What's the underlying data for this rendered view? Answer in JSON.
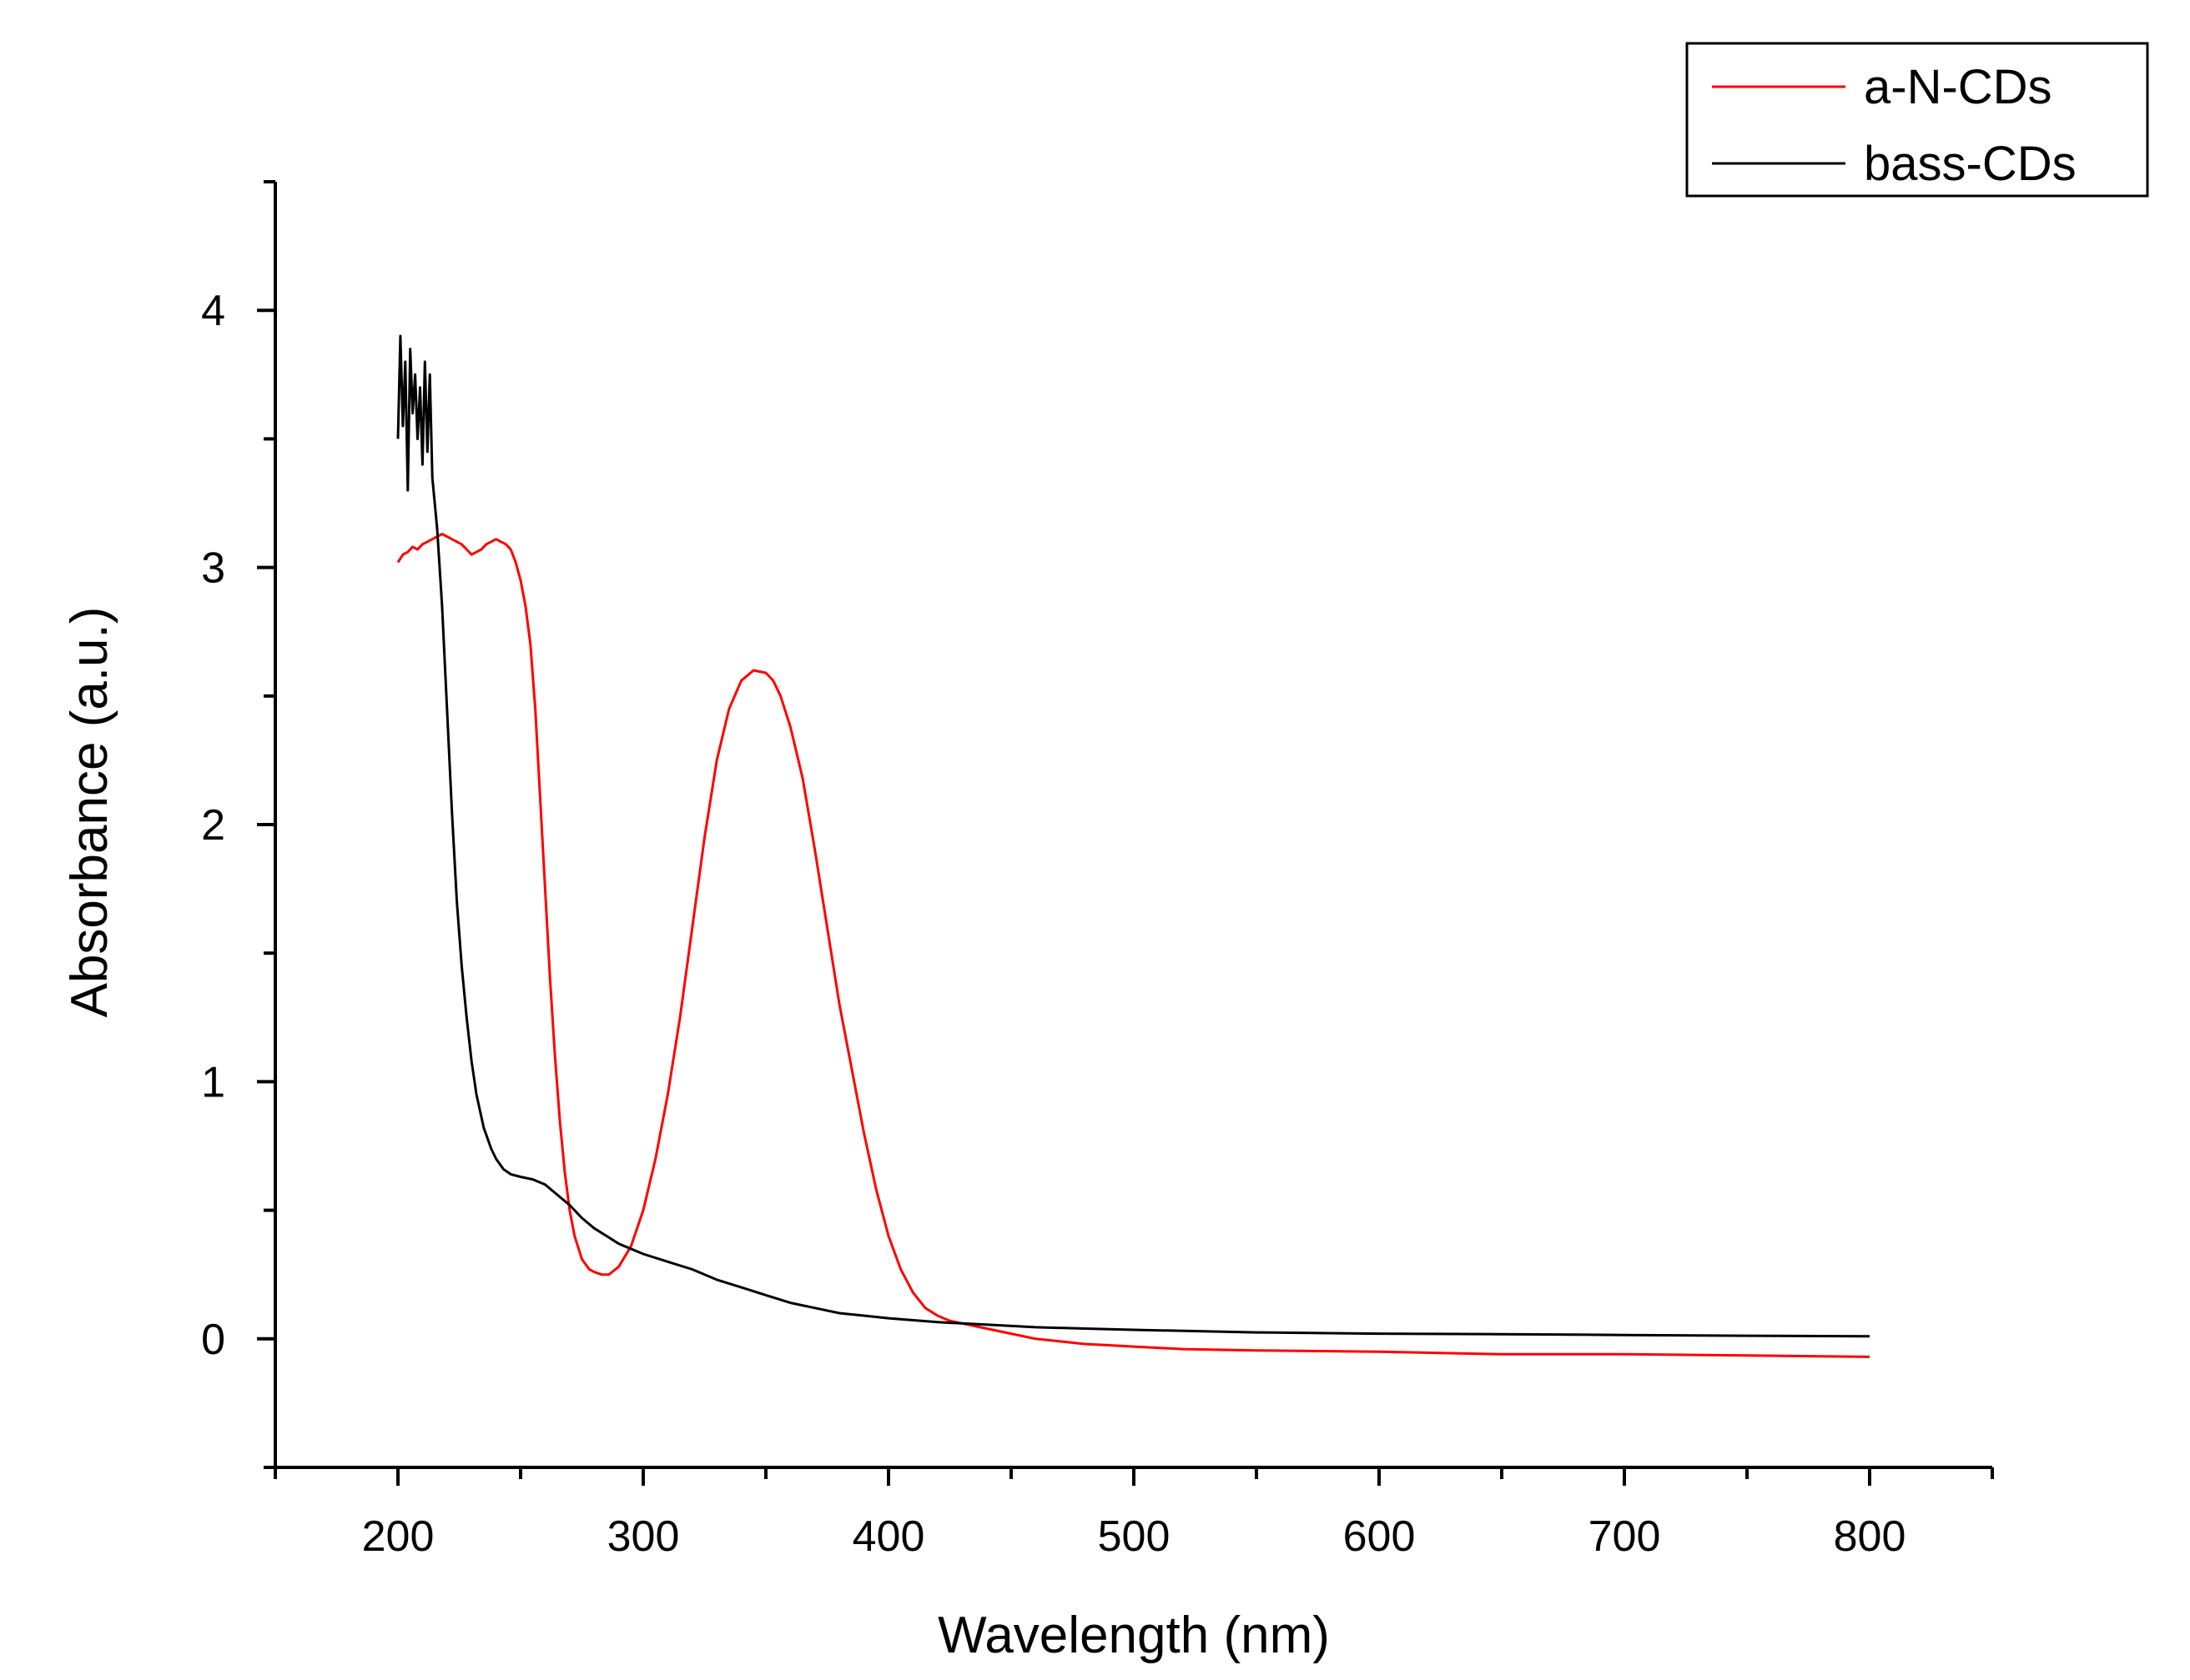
{
  "chart_data": {
    "type": "line",
    "title": "",
    "xlabel": "Wavelength (nm)",
    "ylabel": "Absorbance (a.u.)",
    "xlim": [
      150,
      850
    ],
    "ylim": [
      -0.5,
      4.5
    ],
    "x_ticks": [
      200,
      300,
      400,
      500,
      600,
      700,
      800
    ],
    "x_tick_labels": [
      "200",
      "300",
      "400",
      "500",
      "600",
      "700",
      "800"
    ],
    "y_ticks": [
      0,
      1,
      2,
      3,
      4
    ],
    "y_tick_labels": [
      "0",
      "1",
      "2",
      "3",
      "4"
    ],
    "grid": false,
    "legend_position": "top-right",
    "colors": {
      "axis": "#000000",
      "series_a": "#ff0000",
      "series_b": "#000000"
    },
    "series": [
      {
        "name": "a-N-CDs",
        "color": "#ff0000",
        "x": [
          200,
          202,
          204,
          206,
          208,
          210,
          212,
          214,
          216,
          218,
          220,
          222,
          224,
          226,
          228,
          230,
          232,
          234,
          236,
          238,
          240,
          242,
          244,
          246,
          248,
          250,
          252,
          254,
          256,
          258,
          260,
          262,
          264,
          266,
          268,
          270,
          272,
          275,
          278,
          280,
          283,
          286,
          290,
          295,
          300,
          305,
          310,
          315,
          320,
          325,
          330,
          335,
          340,
          345,
          350,
          353,
          356,
          360,
          365,
          370,
          375,
          380,
          385,
          390,
          395,
          400,
          405,
          410,
          415,
          420,
          425,
          430,
          435,
          440,
          450,
          460,
          470,
          480,
          490,
          500,
          520,
          550,
          600,
          650,
          700,
          750,
          800
        ],
        "values": [
          3.02,
          3.05,
          3.06,
          3.08,
          3.07,
          3.09,
          3.1,
          3.11,
          3.12,
          3.13,
          3.12,
          3.11,
          3.1,
          3.09,
          3.07,
          3.05,
          3.06,
          3.07,
          3.09,
          3.1,
          3.11,
          3.1,
          3.09,
          3.07,
          3.02,
          2.95,
          2.85,
          2.7,
          2.45,
          2.1,
          1.75,
          1.4,
          1.1,
          0.85,
          0.65,
          0.5,
          0.4,
          0.31,
          0.27,
          0.26,
          0.25,
          0.25,
          0.28,
          0.36,
          0.5,
          0.7,
          0.95,
          1.25,
          1.6,
          1.95,
          2.25,
          2.45,
          2.56,
          2.6,
          2.59,
          2.56,
          2.5,
          2.38,
          2.18,
          1.9,
          1.6,
          1.3,
          1.05,
          0.8,
          0.58,
          0.4,
          0.27,
          0.18,
          0.12,
          0.09,
          0.07,
          0.06,
          0.05,
          0.04,
          0.02,
          0.0,
          -0.01,
          -0.02,
          -0.025,
          -0.03,
          -0.04,
          -0.045,
          -0.05,
          -0.06,
          -0.06,
          -0.065,
          -0.07
        ]
      },
      {
        "name": "bass-CDs",
        "color": "#000000",
        "x": [
          200,
          201,
          202,
          203,
          204,
          205,
          206,
          207,
          208,
          209,
          210,
          211,
          212,
          213,
          214,
          216,
          218,
          220,
          222,
          224,
          226,
          228,
          230,
          232,
          235,
          238,
          240,
          243,
          246,
          250,
          255,
          260,
          265,
          270,
          275,
          280,
          285,
          290,
          300,
          310,
          320,
          330,
          340,
          350,
          360,
          370,
          380,
          390,
          400,
          420,
          440,
          460,
          480,
          500,
          550,
          600,
          650,
          700,
          750,
          800
        ],
        "values": [
          3.5,
          3.9,
          3.55,
          3.8,
          3.3,
          3.85,
          3.6,
          3.75,
          3.5,
          3.7,
          3.4,
          3.8,
          3.45,
          3.75,
          3.35,
          3.15,
          2.85,
          2.45,
          2.05,
          1.7,
          1.45,
          1.25,
          1.08,
          0.95,
          0.82,
          0.74,
          0.7,
          0.66,
          0.64,
          0.63,
          0.62,
          0.6,
          0.56,
          0.52,
          0.47,
          0.43,
          0.4,
          0.37,
          0.33,
          0.3,
          0.27,
          0.23,
          0.2,
          0.17,
          0.14,
          0.12,
          0.1,
          0.09,
          0.08,
          0.065,
          0.055,
          0.045,
          0.04,
          0.035,
          0.025,
          0.02,
          0.018,
          0.015,
          0.012,
          0.01
        ]
      }
    ]
  }
}
